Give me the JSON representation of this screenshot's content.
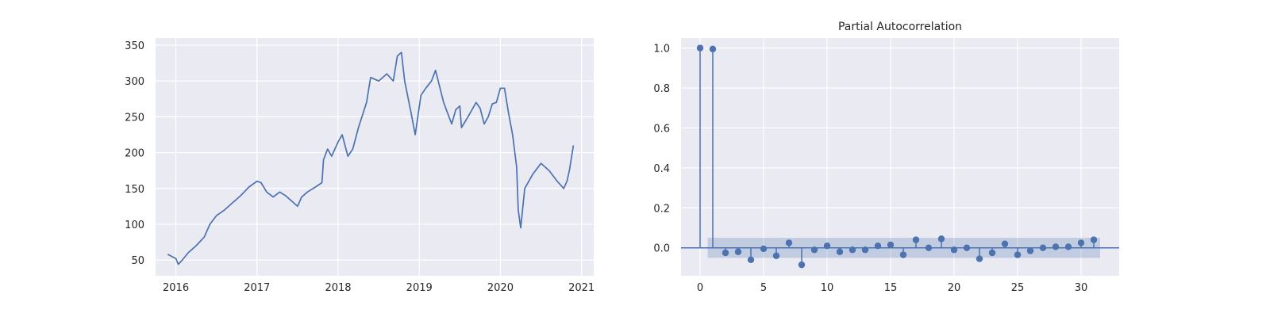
{
  "chart_data": [
    {
      "type": "line",
      "title": "",
      "xlabel": "",
      "ylabel": "",
      "grid": true,
      "xlim": [
        2015.75,
        2021.15
      ],
      "ylim": [
        28,
        360
      ],
      "x_ticks": [
        2016,
        2017,
        2018,
        2019,
        2020,
        2021
      ],
      "x_tick_labels": [
        "2016",
        "2017",
        "2018",
        "2019",
        "2020",
        "2021"
      ],
      "y_ticks": [
        50,
        100,
        150,
        200,
        250,
        300,
        350
      ],
      "y_tick_labels": [
        "50",
        "100",
        "150",
        "200",
        "250",
        "300",
        "350"
      ],
      "color": "#4c72b0",
      "series": [
        {
          "x": [
            2015.9,
            2015.95,
            2016.0,
            2016.03,
            2016.08,
            2016.15,
            2016.25,
            2016.35,
            2016.42,
            2016.5,
            2016.6,
            2016.7,
            2016.8,
            2016.9,
            2017.0,
            2017.05,
            2017.12,
            2017.2,
            2017.28,
            2017.35,
            2017.45,
            2017.5,
            2017.55,
            2017.62,
            2017.72,
            2017.8,
            2017.82,
            2017.87,
            2017.92,
            2018.0,
            2018.05,
            2018.12,
            2018.18,
            2018.25,
            2018.35,
            2018.4,
            2018.5,
            2018.6,
            2018.68,
            2018.73,
            2018.78,
            2018.82,
            2018.9,
            2018.95,
            2019.02,
            2019.08,
            2019.15,
            2019.2,
            2019.3,
            2019.35,
            2019.4,
            2019.45,
            2019.5,
            2019.52,
            2019.6,
            2019.7,
            2019.75,
            2019.8,
            2019.85,
            2019.9,
            2019.95,
            2020.0,
            2020.05,
            2020.1,
            2020.15,
            2020.2,
            2020.22,
            2020.25,
            2020.3,
            2020.4,
            2020.5,
            2020.6,
            2020.7,
            2020.78,
            2020.82,
            2020.85,
            2020.9
          ],
          "y": [
            58,
            55,
            52,
            44,
            50,
            60,
            70,
            82,
            100,
            112,
            120,
            130,
            140,
            152,
            160,
            158,
            145,
            138,
            145,
            140,
            130,
            125,
            138,
            145,
            152,
            158,
            190,
            205,
            195,
            215,
            225,
            195,
            205,
            235,
            270,
            305,
            300,
            310,
            300,
            335,
            340,
            300,
            255,
            225,
            280,
            290,
            300,
            315,
            270,
            255,
            240,
            260,
            265,
            235,
            250,
            270,
            262,
            240,
            250,
            268,
            270,
            290,
            290,
            255,
            225,
            180,
            120,
            95,
            150,
            170,
            185,
            175,
            160,
            150,
            160,
            175,
            210
          ]
        }
      ]
    },
    {
      "type": "stem",
      "title": "Partial Autocorrelation",
      "xlabel": "",
      "ylabel": "",
      "grid": true,
      "xlim": [
        -1.5,
        33
      ],
      "ylim": [
        -0.14,
        1.05
      ],
      "x_ticks": [
        0,
        5,
        10,
        15,
        20,
        25,
        30
      ],
      "x_tick_labels": [
        "0",
        "5",
        "10",
        "15",
        "20",
        "25",
        "30"
      ],
      "y_ticks": [
        0.0,
        0.2,
        0.4,
        0.6,
        0.8,
        1.0
      ],
      "y_tick_labels": [
        "0.0",
        "0.2",
        "0.4",
        "0.6",
        "0.8",
        "1.0"
      ],
      "confidence_band": [
        -0.05,
        0.05
      ],
      "confidence_band_x": [
        0.6,
        31.5
      ],
      "color": "#4c72b0",
      "lags": [
        0,
        1,
        2,
        3,
        4,
        5,
        6,
        7,
        8,
        9,
        10,
        11,
        12,
        13,
        14,
        15,
        16,
        17,
        18,
        19,
        20,
        21,
        22,
        23,
        24,
        25,
        26,
        27,
        28,
        29,
        30,
        31
      ],
      "values": [
        1.0,
        0.995,
        -0.025,
        -0.02,
        -0.06,
        -0.005,
        -0.04,
        0.025,
        -0.085,
        -0.01,
        0.01,
        -0.02,
        -0.01,
        -0.01,
        0.01,
        0.015,
        -0.035,
        0.04,
        0.0,
        0.045,
        -0.01,
        0.0,
        -0.055,
        -0.025,
        0.02,
        -0.035,
        -0.015,
        0.0,
        0.005,
        0.005,
        0.025,
        0.04
      ]
    }
  ]
}
